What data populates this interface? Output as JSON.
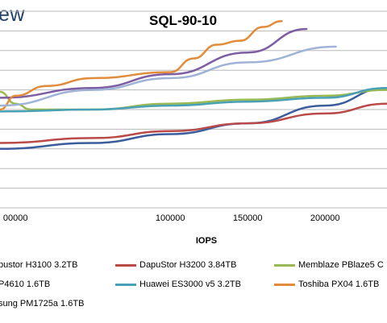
{
  "brand": "ew",
  "chart_data": {
    "type": "line",
    "title": "SQL-90-10",
    "xlabel": "IOPS",
    "xlim": [
      -10000,
      240000
    ],
    "ylim": [
      0,
      10
    ],
    "x_ticks": [
      "00000",
      "100000",
      "150000",
      "200000"
    ],
    "x_tick_values": [
      0,
      100000,
      150000,
      200000
    ],
    "grid": "horizontal",
    "series": [
      {
        "name": "pustor H3100 3.2TB",
        "color": "#3b5d9c",
        "x": [
          -10000,
          50000,
          100000,
          150000,
          200000,
          240000
        ],
        "y": [
          3.0,
          3.3,
          3.75,
          4.3,
          5.2,
          6.1
        ]
      },
      {
        "name": "DapuStor H3200 3.84TB",
        "color": "#b94a48",
        "x": [
          -10000,
          50000,
          100000,
          150000,
          200000,
          240000
        ],
        "y": [
          3.3,
          3.55,
          3.9,
          4.3,
          4.8,
          5.3
        ]
      },
      {
        "name": "Memblaze PBlaze5 C",
        "color": "#98b954",
        "x": [
          -10000,
          0,
          10000,
          50000,
          100000,
          150000,
          200000,
          240000
        ],
        "y": [
          5.9,
          5.3,
          5.0,
          5.0,
          5.3,
          5.5,
          5.7,
          6.0
        ]
      },
      {
        "name": "P4610 1.6TB",
        "color": "#7e5ea3",
        "x": [
          -10000,
          50000,
          100000,
          150000,
          188000
        ],
        "y": [
          5.6,
          6.1,
          6.8,
          7.9,
          9.1
        ]
      },
      {
        "name": "Huawei ES3000 v5 3.2TB",
        "color": "#4aa0b5",
        "x": [
          -10000,
          50000,
          100000,
          150000,
          200000,
          240000
        ],
        "y": [
          4.9,
          5.0,
          5.2,
          5.4,
          5.6,
          6.1
        ]
      },
      {
        "name": "Toshiba PX04 1.6TB",
        "color": "#e08c3a",
        "x": [
          -10000,
          0,
          20000,
          50000,
          100000,
          115000,
          130000,
          145000,
          160000,
          172000
        ],
        "y": [
          5.0,
          5.7,
          6.2,
          6.6,
          6.9,
          7.6,
          8.3,
          8.5,
          9.2,
          9.5
        ]
      },
      {
        "name": "sung PM1725a 1.6TB",
        "color": "#9fb3d6",
        "x": [
          -10000,
          50000,
          100000,
          150000,
          207000
        ],
        "y": [
          5.2,
          6.0,
          6.6,
          7.4,
          8.2
        ]
      }
    ]
  }
}
